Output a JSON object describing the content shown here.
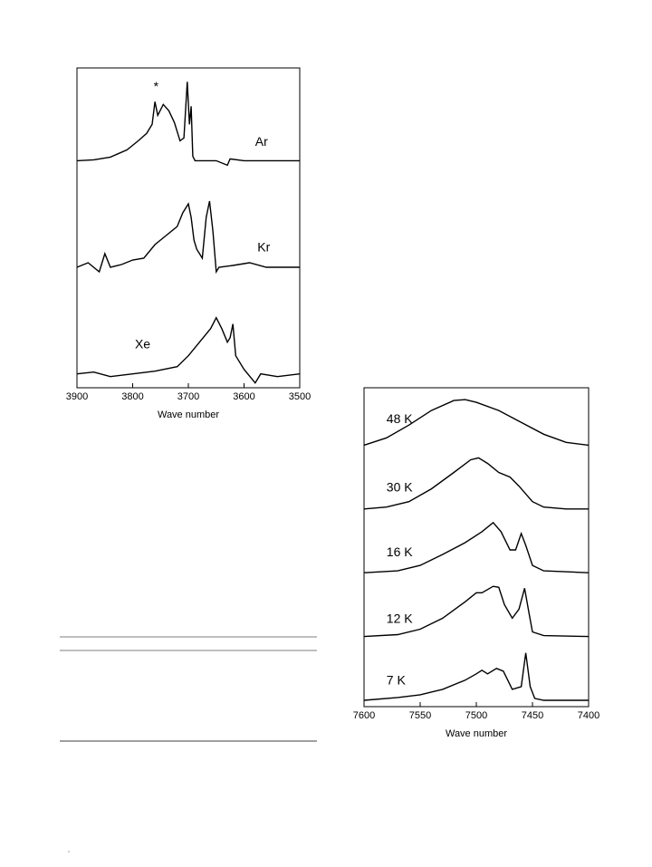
{
  "chart_data": [
    {
      "type": "line",
      "x_label": "Wave number",
      "xlim": [
        3900,
        3500
      ],
      "xticks": [
        3900,
        3800,
        3700,
        3600,
        3500
      ],
      "annotations": [
        "*"
      ],
      "series": [
        {
          "name": "Ar",
          "color": "#000000",
          "x": [
            3900,
            3870,
            3840,
            3810,
            3790,
            3775,
            3765,
            3760,
            3755,
            3745,
            3735,
            3725,
            3715,
            3708,
            3702,
            3698,
            3695,
            3692,
            3688,
            3650,
            3630,
            3625,
            3600,
            3500
          ],
          "values": [
            0,
            1,
            4,
            12,
            22,
            30,
            40,
            65,
            50,
            62,
            55,
            42,
            22,
            25,
            87,
            40,
            60,
            5,
            0,
            0,
            -5,
            2,
            0,
            0
          ]
        },
        {
          "name": "Kr",
          "color": "#000000",
          "x": [
            3900,
            3880,
            3860,
            3850,
            3840,
            3820,
            3800,
            3780,
            3760,
            3740,
            3720,
            3710,
            3700,
            3695,
            3690,
            3685,
            3675,
            3668,
            3662,
            3656,
            3650,
            3645,
            3620,
            3590,
            3560,
            3500
          ],
          "values": [
            0,
            5,
            -5,
            15,
            0,
            3,
            8,
            10,
            25,
            35,
            45,
            60,
            70,
            55,
            30,
            20,
            10,
            55,
            73,
            40,
            -5,
            0,
            2,
            5,
            0,
            0
          ]
        },
        {
          "name": "Xe",
          "color": "#000000",
          "x": [
            3900,
            3870,
            3840,
            3800,
            3760,
            3720,
            3700,
            3680,
            3660,
            3650,
            3640,
            3630,
            3625,
            3620,
            3615,
            3600,
            3580,
            3570,
            3540,
            3500
          ],
          "values": [
            0,
            2,
            -3,
            0,
            3,
            8,
            20,
            35,
            50,
            62,
            50,
            35,
            40,
            55,
            20,
            5,
            -10,
            0,
            -3,
            0
          ]
        }
      ]
    },
    {
      "type": "line",
      "x_label": "Wave number",
      "xlim": [
        7600,
        7400
      ],
      "xticks": [
        7600,
        7550,
        7500,
        7450,
        7400
      ],
      "series": [
        {
          "name": "48 K",
          "color": "#000000",
          "x": [
            7600,
            7580,
            7560,
            7540,
            7520,
            7510,
            7500,
            7480,
            7460,
            7440,
            7420,
            7400
          ],
          "values": [
            0,
            8,
            22,
            38,
            49,
            50,
            47,
            38,
            25,
            12,
            3,
            0
          ]
        },
        {
          "name": "30 K",
          "color": "#000000",
          "x": [
            7600,
            7580,
            7560,
            7540,
            7520,
            7505,
            7498,
            7490,
            7480,
            7470,
            7462,
            7450,
            7440,
            7420,
            7400
          ],
          "values": [
            0,
            2,
            8,
            22,
            40,
            54,
            56,
            50,
            40,
            35,
            25,
            8,
            2,
            0,
            0
          ]
        },
        {
          "name": "16 K",
          "color": "#000000",
          "x": [
            7600,
            7570,
            7550,
            7530,
            7510,
            7495,
            7485,
            7478,
            7470,
            7465,
            7460,
            7456,
            7450,
            7440,
            7400
          ],
          "values": [
            0,
            2,
            8,
            20,
            33,
            45,
            55,
            45,
            25,
            25,
            43,
            30,
            8,
            2,
            0
          ]
        },
        {
          "name": "12 K",
          "color": "#000000",
          "x": [
            7600,
            7570,
            7550,
            7530,
            7510,
            7500,
            7495,
            7485,
            7480,
            7475,
            7468,
            7462,
            7457,
            7453,
            7450,
            7440,
            7400
          ],
          "values": [
            0,
            2,
            8,
            20,
            38,
            48,
            48,
            55,
            54,
            35,
            20,
            30,
            53,
            25,
            5,
            1,
            0
          ]
        },
        {
          "name": "7 K",
          "color": "#000000",
          "x": [
            7600,
            7570,
            7550,
            7530,
            7510,
            7500,
            7495,
            7490,
            7482,
            7476,
            7468,
            7460,
            7456,
            7452,
            7448,
            7440,
            7400
          ],
          "values": [
            0,
            3,
            6,
            12,
            22,
            29,
            33,
            29,
            35,
            32,
            12,
            15,
            52,
            15,
            2,
            0,
            0
          ]
        }
      ]
    }
  ]
}
